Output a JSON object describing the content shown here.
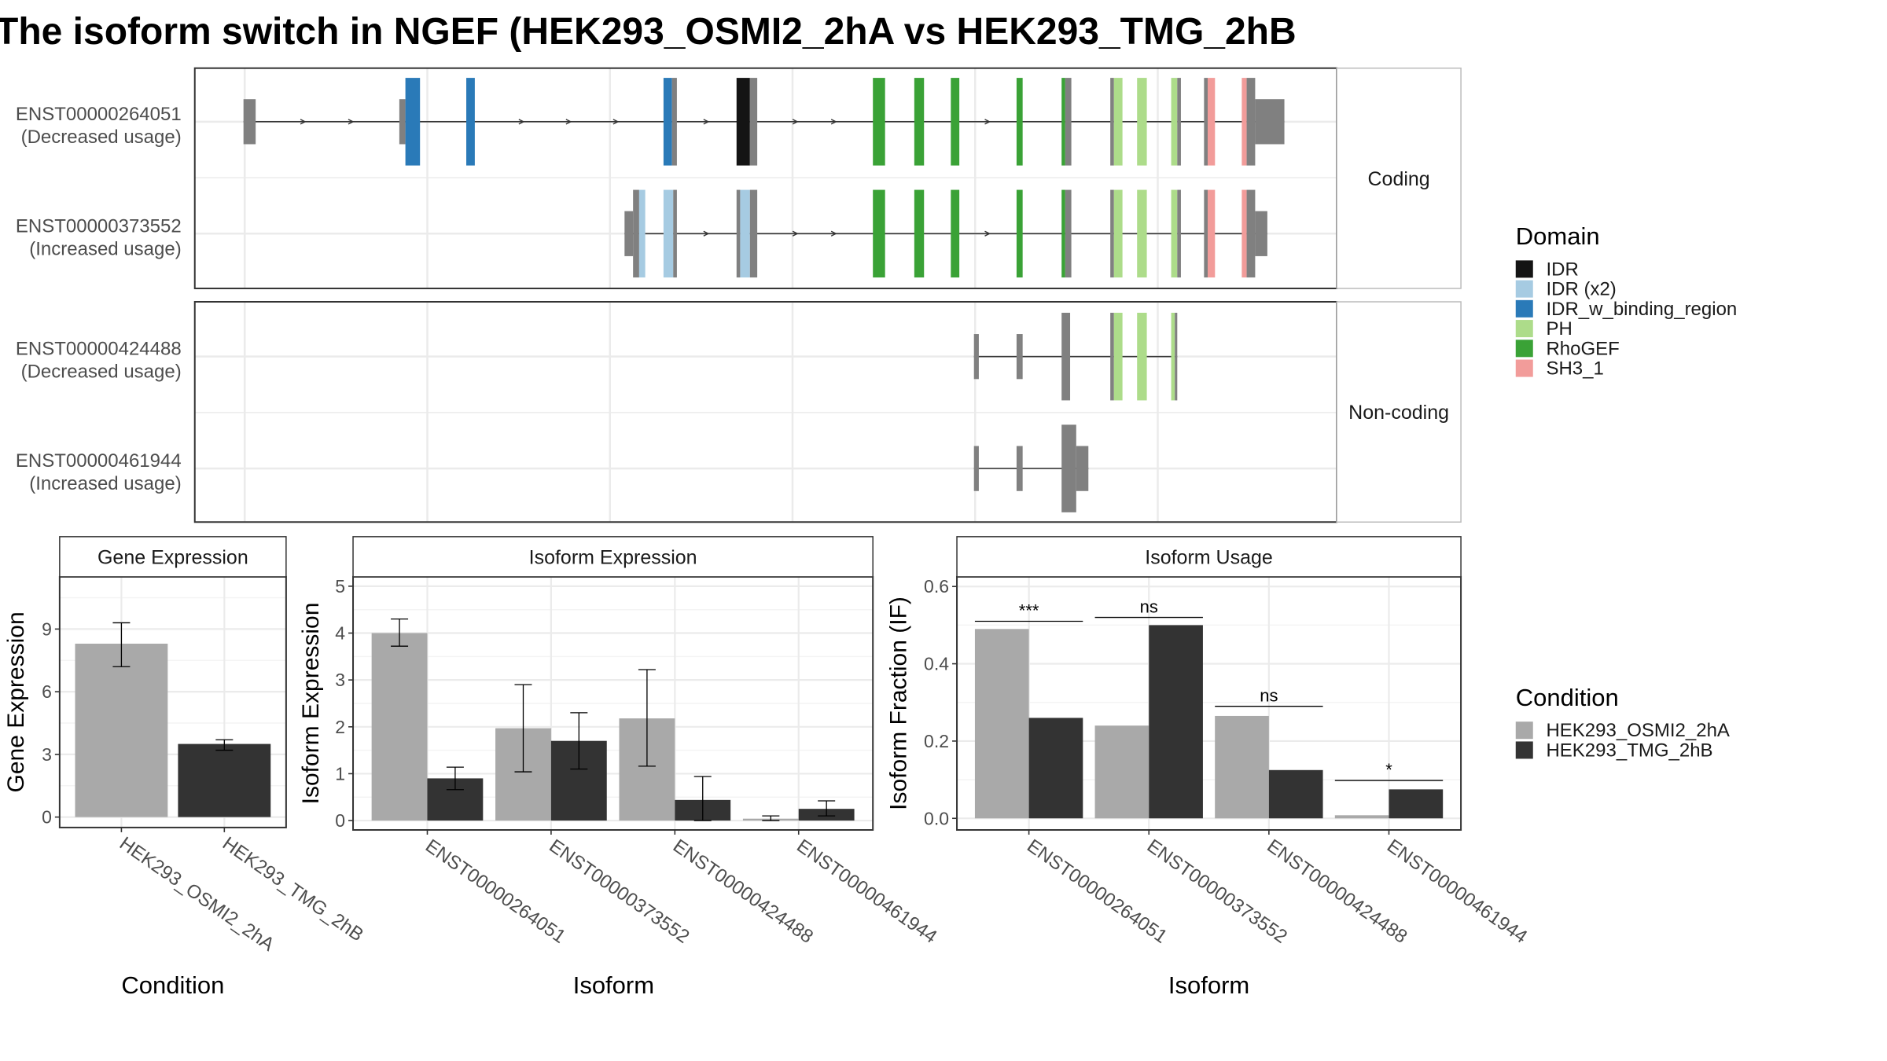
{
  "title": "The isoform switch in NGEF (HEK293_OSMI2_2hA vs HEK293_TMG_2hB",
  "colors": {
    "IDR": "#141414",
    "IDR (x2)": "#a6cbe2",
    "IDR_w_binding_region": "#2a7ab8",
    "PH": "#addc8a",
    "RhoGEF": "#3aa236",
    "SH3_1": "#f29c9a",
    "none": "#808080",
    "cond_a": "#a9a9a9",
    "cond_b": "#333333",
    "strip": "#ffffff",
    "grid": "#ebebeb"
  },
  "legend_domain": {
    "title": "Domain",
    "items": [
      "IDR",
      "IDR (x2)",
      "IDR_w_binding_region",
      "PH",
      "RhoGEF",
      "SH3_1"
    ]
  },
  "legend_condition": {
    "title": "Condition",
    "items": [
      "HEK293_OSMI2_2hA",
      "HEK293_TMG_2hB"
    ]
  },
  "structure": {
    "panels": [
      {
        "strip": "Coding",
        "transcripts": [
          {
            "id": "ENST00000264051",
            "label2": "(Decreased usage)",
            "intron": [
              200,
              1055
            ],
            "exons": [
              {
                "s": 200,
                "e": 210,
                "t": "utr",
                "d": "none"
              },
              {
                "s": 328,
                "e": 333,
                "t": "utr",
                "d": "none"
              },
              {
                "s": 333,
                "e": 345,
                "t": "cds",
                "d": "IDR_w_binding_region"
              },
              {
                "s": 383,
                "e": 390,
                "t": "cds",
                "d": "IDR_w_binding_region"
              },
              {
                "s": 545,
                "e": 552,
                "t": "cds",
                "d": "IDR_w_binding_region"
              },
              {
                "s": 552,
                "e": 556,
                "t": "cds",
                "d": "none"
              },
              {
                "s": 605,
                "e": 616,
                "t": "cds",
                "d": "IDR"
              },
              {
                "s": 616,
                "e": 622,
                "t": "cds",
                "d": "none"
              },
              {
                "s": 717,
                "e": 727,
                "t": "cds",
                "d": "RhoGEF"
              },
              {
                "s": 751,
                "e": 759,
                "t": "cds",
                "d": "RhoGEF"
              },
              {
                "s": 781,
                "e": 788,
                "t": "cds",
                "d": "RhoGEF"
              },
              {
                "s": 835,
                "e": 840,
                "t": "cds",
                "d": "RhoGEF"
              },
              {
                "s": 872,
                "e": 875,
                "t": "cds",
                "d": "RhoGEF"
              },
              {
                "s": 875,
                "e": 880,
                "t": "cds",
                "d": "none"
              },
              {
                "s": 912,
                "e": 915,
                "t": "cds",
                "d": "none"
              },
              {
                "s": 915,
                "e": 922,
                "t": "cds",
                "d": "PH"
              },
              {
                "s": 934,
                "e": 942,
                "t": "cds",
                "d": "PH"
              },
              {
                "s": 962,
                "e": 967,
                "t": "cds",
                "d": "PH"
              },
              {
                "s": 967,
                "e": 970,
                "t": "cds",
                "d": "none"
              },
              {
                "s": 989,
                "e": 992,
                "t": "cds",
                "d": "none"
              },
              {
                "s": 992,
                "e": 998,
                "t": "cds",
                "d": "SH3_1"
              },
              {
                "s": 1020,
                "e": 1024,
                "t": "cds",
                "d": "SH3_1"
              },
              {
                "s": 1024,
                "e": 1031,
                "t": "cds",
                "d": "none"
              },
              {
                "s": 1031,
                "e": 1055,
                "t": "utr",
                "d": "none"
              }
            ]
          },
          {
            "id": "ENST00000373552",
            "label2": "(Increased usage)",
            "intron": [
              513,
              1041
            ],
            "exons": [
              {
                "s": 513,
                "e": 520,
                "t": "utr",
                "d": "none"
              },
              {
                "s": 520,
                "e": 525,
                "t": "cds",
                "d": "none"
              },
              {
                "s": 525,
                "e": 530,
                "t": "cds",
                "d": "IDR (x2)"
              },
              {
                "s": 545,
                "e": 553,
                "t": "cds",
                "d": "IDR (x2)"
              },
              {
                "s": 553,
                "e": 556,
                "t": "cds",
                "d": "none"
              },
              {
                "s": 605,
                "e": 608,
                "t": "cds",
                "d": "none"
              },
              {
                "s": 608,
                "e": 616,
                "t": "cds",
                "d": "IDR (x2)"
              },
              {
                "s": 616,
                "e": 622,
                "t": "cds",
                "d": "none"
              },
              {
                "s": 717,
                "e": 727,
                "t": "cds",
                "d": "RhoGEF"
              },
              {
                "s": 751,
                "e": 759,
                "t": "cds",
                "d": "RhoGEF"
              },
              {
                "s": 781,
                "e": 788,
                "t": "cds",
                "d": "RhoGEF"
              },
              {
                "s": 835,
                "e": 840,
                "t": "cds",
                "d": "RhoGEF"
              },
              {
                "s": 872,
                "e": 875,
                "t": "cds",
                "d": "RhoGEF"
              },
              {
                "s": 875,
                "e": 880,
                "t": "cds",
                "d": "none"
              },
              {
                "s": 912,
                "e": 915,
                "t": "cds",
                "d": "none"
              },
              {
                "s": 915,
                "e": 922,
                "t": "cds",
                "d": "PH"
              },
              {
                "s": 934,
                "e": 942,
                "t": "cds",
                "d": "PH"
              },
              {
                "s": 962,
                "e": 967,
                "t": "cds",
                "d": "PH"
              },
              {
                "s": 967,
                "e": 970,
                "t": "cds",
                "d": "none"
              },
              {
                "s": 989,
                "e": 992,
                "t": "cds",
                "d": "none"
              },
              {
                "s": 992,
                "e": 998,
                "t": "cds",
                "d": "SH3_1"
              },
              {
                "s": 1020,
                "e": 1024,
                "t": "cds",
                "d": "SH3_1"
              },
              {
                "s": 1024,
                "e": 1031,
                "t": "cds",
                "d": "none"
              },
              {
                "s": 1031,
                "e": 1041,
                "t": "utr",
                "d": "none"
              }
            ]
          }
        ]
      },
      {
        "strip": "Non-coding",
        "transcripts": [
          {
            "id": "ENST00000424488",
            "label2": "(Decreased usage)",
            "intron": [
              800,
              967
            ],
            "exons": [
              {
                "s": 800,
                "e": 804,
                "t": "utr",
                "d": "none"
              },
              {
                "s": 835,
                "e": 838,
                "t": "utr",
                "d": "none"
              },
              {
                "s": 838,
                "e": 840,
                "t": "utr",
                "d": "none"
              },
              {
                "s": 872,
                "e": 879,
                "t": "cds",
                "d": "none"
              },
              {
                "s": 912,
                "e": 915,
                "t": "cds",
                "d": "none"
              },
              {
                "s": 915,
                "e": 922,
                "t": "cds",
                "d": "PH"
              },
              {
                "s": 934,
                "e": 942,
                "t": "cds",
                "d": "PH"
              },
              {
                "s": 962,
                "e": 965,
                "t": "cds",
                "d": "PH"
              },
              {
                "s": 965,
                "e": 967,
                "t": "cds",
                "d": "none"
              }
            ]
          },
          {
            "id": "ENST00000461944",
            "label2": "(Increased usage)",
            "intron": [
              800,
              894
            ],
            "exons": [
              {
                "s": 800,
                "e": 804,
                "t": "utr",
                "d": "none"
              },
              {
                "s": 835,
                "e": 838,
                "t": "utr",
                "d": "none"
              },
              {
                "s": 838,
                "e": 840,
                "t": "utr",
                "d": "none"
              },
              {
                "s": 872,
                "e": 884,
                "t": "cds",
                "d": "none"
              },
              {
                "s": 884,
                "e": 894,
                "t": "utr",
                "d": "none"
              }
            ]
          }
        ]
      }
    ]
  },
  "chart_data": [
    {
      "type": "bar",
      "title": "Gene Expression",
      "xlabel": "Condition",
      "ylabel": "Gene Expression",
      "categories": [
        "HEK293_OSMI2_2hA",
        "HEK293_TMG_2hB"
      ],
      "values": [
        8.3,
        3.5
      ],
      "errors": [
        [
          7.2,
          9.3
        ],
        [
          3.2,
          3.7
        ]
      ],
      "ylim": [
        -0.5,
        11.5
      ],
      "yticks": [
        0,
        3,
        6,
        9
      ],
      "grid": true
    },
    {
      "type": "bar",
      "title": "Isoform Expression",
      "xlabel": "Isoform",
      "ylabel": "Isoform Expression",
      "categories": [
        "ENST00000264051",
        "ENST00000373552",
        "ENST00000424488",
        "ENST00000461944"
      ],
      "series": [
        {
          "name": "HEK293_OSMI2_2hA",
          "values": [
            4.0,
            1.97,
            2.18,
            0.04
          ],
          "errors": [
            [
              3.72,
              4.3
            ],
            [
              1.04,
              2.9
            ],
            [
              1.16,
              3.22
            ],
            [
              0.0,
              0.1
            ]
          ]
        },
        {
          "name": "HEK293_TMG_2hB",
          "values": [
            0.9,
            1.7,
            0.44,
            0.25
          ],
          "errors": [
            [
              0.66,
              1.14
            ],
            [
              1.1,
              2.3
            ],
            [
              0.0,
              0.94
            ],
            [
              0.1,
              0.42
            ]
          ]
        }
      ],
      "ylim": [
        -0.2,
        5.2
      ],
      "yticks": [
        0,
        1,
        2,
        3,
        4,
        5
      ],
      "grid": true
    },
    {
      "type": "bar",
      "title": "Isoform Usage",
      "xlabel": "Isoform",
      "ylabel": "Isoform Fraction (IF)",
      "categories": [
        "ENST00000264051",
        "ENST00000373552",
        "ENST00000424488",
        "ENST00000461944"
      ],
      "series": [
        {
          "name": "HEK293_OSMI2_2hA",
          "values": [
            0.49,
            0.24,
            0.265,
            0.008
          ]
        },
        {
          "name": "HEK293_TMG_2hB",
          "values": [
            0.26,
            0.5,
            0.125,
            0.075
          ]
        }
      ],
      "significance": [
        {
          "label": "***",
          "y": 0.51
        },
        {
          "label": "ns",
          "y": 0.52
        },
        {
          "label": "ns",
          "y": 0.29
        },
        {
          "label": "*",
          "y": 0.098
        }
      ],
      "ylim": [
        -0.03,
        0.625
      ],
      "yticks": [
        0.0,
        0.2,
        0.4,
        0.6
      ],
      "grid": true
    }
  ]
}
